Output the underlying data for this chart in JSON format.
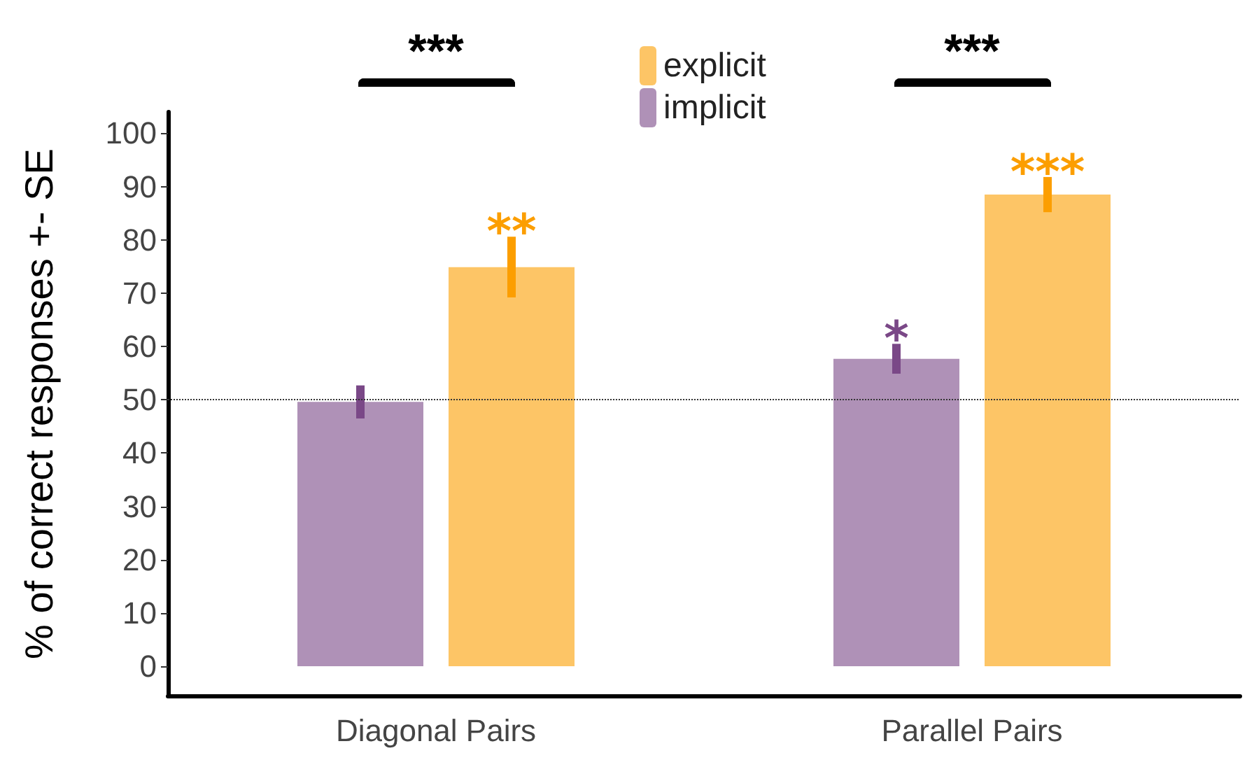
{
  "chart_data": {
    "type": "bar",
    "ylabel": "% of correct responses +- SE",
    "categories": [
      "Diagonal Pairs",
      "Parallel Pairs"
    ],
    "series": [
      {
        "name": "implicit",
        "color": "#af91b7",
        "values": [
          49.6,
          57.7
        ],
        "errors": [
          3.1,
          2.8
        ],
        "value_labels": [
          null,
          "*"
        ]
      },
      {
        "name": "explicit",
        "color": "#fdc566",
        "values": [
          74.9,
          88.5
        ],
        "errors": [
          5.7,
          3.3
        ],
        "value_labels": [
          "**",
          "***"
        ]
      }
    ],
    "ylim": [
      -5.5,
      104
    ],
    "yticks": [
      0,
      10,
      20,
      30,
      40,
      50,
      60,
      70,
      80,
      90,
      100
    ],
    "grid": false,
    "legend": "top",
    "ref_lines": [
      {
        "axis": "y",
        "value": 50,
        "line_style": "dotted"
      }
    ],
    "annotations": [
      "***",
      "***"
    ]
  }
}
